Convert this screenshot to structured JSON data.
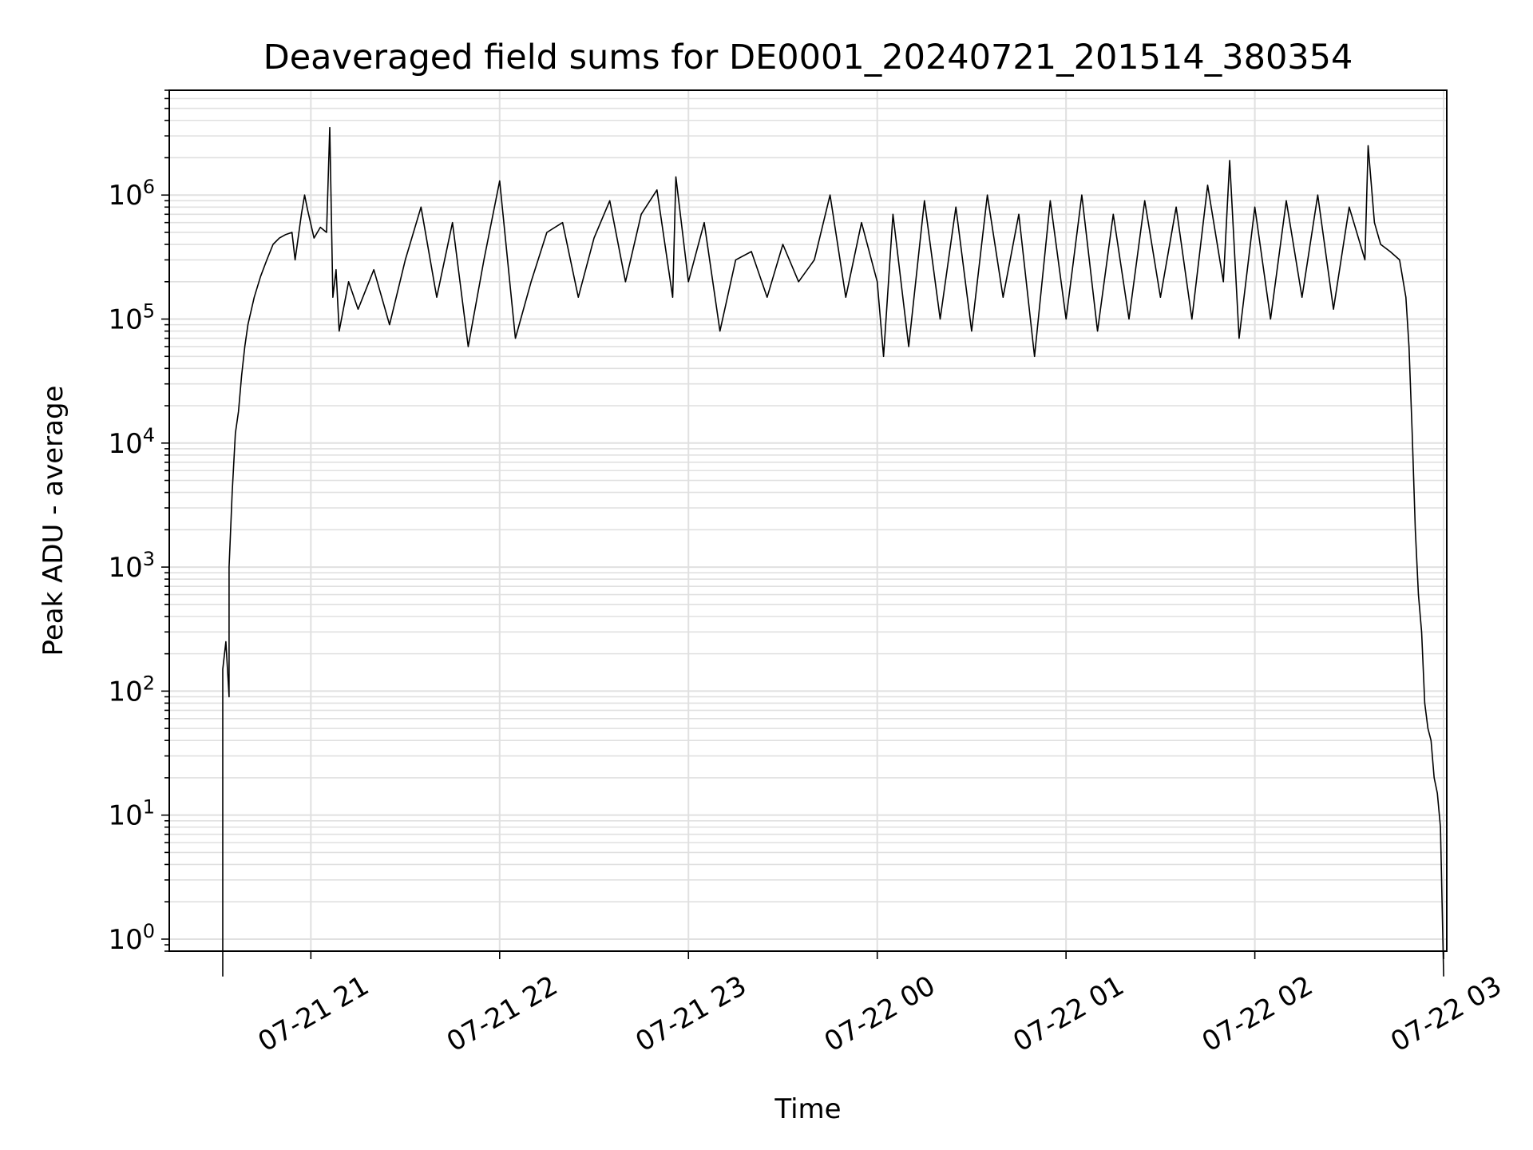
{
  "chart_data": {
    "type": "line",
    "title": "Deaveraged field sums for DE0001_20240721_201514_380354",
    "xlabel": "Time",
    "ylabel": "Peak ADU - average",
    "x_scale": "time",
    "y_scale": "log",
    "xlim": [
      "2024-07-21 20:15",
      "2024-07-22 03:01"
    ],
    "ylim": [
      0.8,
      7000000
    ],
    "grid": true,
    "line_color": "#000000",
    "grid_color": "#e0e0e0",
    "x_ticks": [
      {
        "t": "2024-07-21 21:00",
        "label": "07-21 21"
      },
      {
        "t": "2024-07-21 22:00",
        "label": "07-21 22"
      },
      {
        "t": "2024-07-21 23:00",
        "label": "07-21 23"
      },
      {
        "t": "2024-07-22 00:00",
        "label": "07-22 00"
      },
      {
        "t": "2024-07-22 01:00",
        "label": "07-22 01"
      },
      {
        "t": "2024-07-22 02:00",
        "label": "07-22 02"
      },
      {
        "t": "2024-07-22 03:00",
        "label": "07-22 03"
      }
    ],
    "y_ticks": [
      {
        "value": 1,
        "base": "10",
        "exp": "0"
      },
      {
        "value": 10,
        "base": "10",
        "exp": "1"
      },
      {
        "value": 100,
        "base": "10",
        "exp": "2"
      },
      {
        "value": 1000,
        "base": "10",
        "exp": "3"
      },
      {
        "value": 10000,
        "base": "10",
        "exp": "4"
      },
      {
        "value": 100000,
        "base": "10",
        "exp": "5"
      },
      {
        "value": 1000000,
        "base": "10",
        "exp": "6"
      }
    ],
    "series": [
      {
        "points": [
          [
            "2024-07-21 20:32",
            0.5
          ],
          [
            "2024-07-21 20:32",
            150
          ],
          [
            "2024-07-21 20:33",
            250
          ],
          [
            "2024-07-21 20:34",
            90
          ],
          [
            "2024-07-21 20:34",
            1000
          ],
          [
            "2024-07-21 20:35",
            4000
          ],
          [
            "2024-07-21 20:36",
            12000
          ],
          [
            "2024-07-21 20:37",
            18000
          ],
          [
            "2024-07-21 20:38",
            35000
          ],
          [
            "2024-07-21 20:39",
            60000
          ],
          [
            "2024-07-21 20:40",
            90000
          ],
          [
            "2024-07-21 20:42",
            150000
          ],
          [
            "2024-07-21 20:44",
            220000
          ],
          [
            "2024-07-21 20:46",
            300000
          ],
          [
            "2024-07-21 20:48",
            400000
          ],
          [
            "2024-07-21 20:50",
            450000
          ],
          [
            "2024-07-21 20:52",
            480000
          ],
          [
            "2024-07-21 20:54",
            500000
          ],
          [
            "2024-07-21 20:55",
            300000
          ],
          [
            "2024-07-21 20:57",
            700000
          ],
          [
            "2024-07-21 20:58",
            1000000
          ],
          [
            "2024-07-21 20:59",
            750000
          ],
          [
            "2024-07-21 21:01",
            450000
          ],
          [
            "2024-07-21 21:03",
            550000
          ],
          [
            "2024-07-21 21:05",
            500000
          ],
          [
            "2024-07-21 21:06",
            3500000
          ],
          [
            "2024-07-21 21:07",
            150000
          ],
          [
            "2024-07-21 21:08",
            250000
          ],
          [
            "2024-07-21 21:09",
            80000
          ],
          [
            "2024-07-21 21:12",
            200000
          ],
          [
            "2024-07-21 21:15",
            120000
          ],
          [
            "2024-07-21 21:20",
            250000
          ],
          [
            "2024-07-21 21:25",
            90000
          ],
          [
            "2024-07-21 21:30",
            300000
          ],
          [
            "2024-07-21 21:35",
            800000
          ],
          [
            "2024-07-21 21:40",
            150000
          ],
          [
            "2024-07-21 21:45",
            600000
          ],
          [
            "2024-07-21 21:50",
            60000
          ],
          [
            "2024-07-21 21:55",
            300000
          ],
          [
            "2024-07-21 22:00",
            1300000
          ],
          [
            "2024-07-21 22:05",
            70000
          ],
          [
            "2024-07-21 22:10",
            200000
          ],
          [
            "2024-07-21 22:15",
            500000
          ],
          [
            "2024-07-21 22:20",
            600000
          ],
          [
            "2024-07-21 22:25",
            150000
          ],
          [
            "2024-07-21 22:30",
            450000
          ],
          [
            "2024-07-21 22:35",
            900000
          ],
          [
            "2024-07-21 22:40",
            200000
          ],
          [
            "2024-07-21 22:45",
            700000
          ],
          [
            "2024-07-21 22:50",
            1100000
          ],
          [
            "2024-07-21 22:55",
            150000
          ],
          [
            "2024-07-21 22:56",
            1400000
          ],
          [
            "2024-07-21 23:00",
            200000
          ],
          [
            "2024-07-21 23:05",
            600000
          ],
          [
            "2024-07-21 23:10",
            80000
          ],
          [
            "2024-07-21 23:15",
            300000
          ],
          [
            "2024-07-21 23:20",
            350000
          ],
          [
            "2024-07-21 23:25",
            150000
          ],
          [
            "2024-07-21 23:30",
            400000
          ],
          [
            "2024-07-21 23:35",
            200000
          ],
          [
            "2024-07-21 23:40",
            300000
          ],
          [
            "2024-07-21 23:45",
            1000000
          ],
          [
            "2024-07-21 23:50",
            150000
          ],
          [
            "2024-07-21 23:55",
            600000
          ],
          [
            "2024-07-22 00:00",
            200000
          ],
          [
            "2024-07-22 00:02",
            50000
          ],
          [
            "2024-07-22 00:05",
            700000
          ],
          [
            "2024-07-22 00:10",
            60000
          ],
          [
            "2024-07-22 00:15",
            900000
          ],
          [
            "2024-07-22 00:20",
            100000
          ],
          [
            "2024-07-22 00:25",
            800000
          ],
          [
            "2024-07-22 00:30",
            80000
          ],
          [
            "2024-07-22 00:35",
            1000000
          ],
          [
            "2024-07-22 00:40",
            150000
          ],
          [
            "2024-07-22 00:45",
            700000
          ],
          [
            "2024-07-22 00:50",
            50000
          ],
          [
            "2024-07-22 00:55",
            900000
          ],
          [
            "2024-07-22 01:00",
            100000
          ],
          [
            "2024-07-22 01:05",
            1000000
          ],
          [
            "2024-07-22 01:10",
            80000
          ],
          [
            "2024-07-22 01:15",
            700000
          ],
          [
            "2024-07-22 01:20",
            100000
          ],
          [
            "2024-07-22 01:25",
            900000
          ],
          [
            "2024-07-22 01:30",
            150000
          ],
          [
            "2024-07-22 01:35",
            800000
          ],
          [
            "2024-07-22 01:40",
            100000
          ],
          [
            "2024-07-22 01:45",
            1200000
          ],
          [
            "2024-07-22 01:50",
            200000
          ],
          [
            "2024-07-22 01:52",
            1900000
          ],
          [
            "2024-07-22 01:55",
            70000
          ],
          [
            "2024-07-22 02:00",
            800000
          ],
          [
            "2024-07-22 02:05",
            100000
          ],
          [
            "2024-07-22 02:10",
            900000
          ],
          [
            "2024-07-22 02:15",
            150000
          ],
          [
            "2024-07-22 02:20",
            1000000
          ],
          [
            "2024-07-22 02:25",
            120000
          ],
          [
            "2024-07-22 02:30",
            800000
          ],
          [
            "2024-07-22 02:35",
            300000
          ],
          [
            "2024-07-22 02:36",
            2500000
          ],
          [
            "2024-07-22 02:38",
            600000
          ],
          [
            "2024-07-22 02:40",
            400000
          ],
          [
            "2024-07-22 02:43",
            350000
          ],
          [
            "2024-07-22 02:46",
            300000
          ],
          [
            "2024-07-22 02:48",
            150000
          ],
          [
            "2024-07-22 02:49",
            60000
          ],
          [
            "2024-07-22 02:50",
            12000
          ],
          [
            "2024-07-22 02:51",
            2000
          ],
          [
            "2024-07-22 02:52",
            600
          ],
          [
            "2024-07-22 02:53",
            300
          ],
          [
            "2024-07-22 02:54",
            80
          ],
          [
            "2024-07-22 02:55",
            50
          ],
          [
            "2024-07-22 02:56",
            40
          ],
          [
            "2024-07-22 02:57",
            20
          ],
          [
            "2024-07-22 02:58",
            15
          ],
          [
            "2024-07-22 02:59",
            8
          ],
          [
            "2024-07-22 03:00",
            0.5
          ]
        ]
      }
    ]
  }
}
